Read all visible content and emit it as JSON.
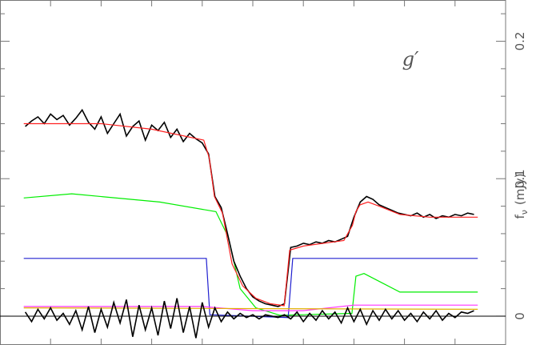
{
  "chart_data": {
    "type": "line",
    "annotation": "g′",
    "y_label": "f",
    "y_label_sub": "ν",
    "y_label_unit": "(mJy)",
    "xlim": [
      0,
      1
    ],
    "xticks": [
      0.1,
      0.2,
      0.3,
      0.4,
      0.5,
      0.6,
      0.7,
      0.8,
      0.9
    ],
    "ylim": [
      -0.021,
      0.23
    ],
    "yticks": [
      0,
      0.1,
      0.2
    ],
    "yminorticks": [
      0.02,
      0.04,
      0.06,
      0.08,
      0.12,
      0.14,
      0.16,
      0.18,
      0.22
    ],
    "series": [
      {
        "color": "#00ee00",
        "x": [
          0.047,
          0.142,
          0.316,
          0.427,
          0.451,
          0.475,
          0.506,
          0.554,
          0.696,
          0.704,
          0.72,
          0.791,
          0.945
        ],
        "values": [
          0.086,
          0.089,
          0.083,
          0.076,
          0.058,
          0.02,
          0.006,
          0.0006,
          0.002,
          0.029,
          0.031,
          0.0175,
          0.0175
        ]
      },
      {
        "color": "#2020d0",
        "x": [
          0.047,
          0.408,
          0.415,
          0.57,
          0.579,
          0.945
        ],
        "values": [
          0.042,
          0.042,
          0.001,
          -0.001,
          0.042,
          0.042
        ]
      },
      {
        "color": "#ff33ff",
        "x": [
          0.047,
          0.4,
          0.5,
          0.6,
          0.7,
          0.945
        ],
        "values": [
          0.007,
          0.007,
          0.004,
          0.004,
          0.008,
          0.008
        ]
      },
      {
        "color": "#e0b000",
        "x": [
          0.047,
          0.945
        ],
        "values": [
          0.006,
          0.005
        ]
      },
      {
        "color": "#000000",
        "x": [
          0.05,
          0.0625,
          0.075,
          0.0875,
          0.1,
          0.1125,
          0.125,
          0.1375,
          0.15,
          0.1625,
          0.175,
          0.1875,
          0.2,
          0.2125,
          0.225,
          0.2375,
          0.25,
          0.2625,
          0.275,
          0.2875,
          0.3,
          0.3125,
          0.325,
          0.3375,
          0.35,
          0.3625,
          0.375,
          0.3875,
          0.4,
          0.4125,
          0.425,
          0.4375,
          0.45,
          0.4625,
          0.475,
          0.4875,
          0.5,
          0.5125,
          0.525,
          0.5375,
          0.55,
          0.5625,
          0.575,
          0.5875,
          0.6,
          0.6125,
          0.625,
          0.6375,
          0.65,
          0.6625,
          0.675,
          0.6875,
          0.7,
          0.7125,
          0.725,
          0.7375,
          0.75,
          0.7625,
          0.775,
          0.7875,
          0.8,
          0.8125,
          0.825,
          0.8375,
          0.85,
          0.8625,
          0.875,
          0.8875,
          0.9,
          0.9125,
          0.925,
          0.9375
        ],
        "values": [
          0.138,
          0.142,
          0.145,
          0.14,
          0.147,
          0.143,
          0.146,
          0.139,
          0.144,
          0.15,
          0.141,
          0.136,
          0.145,
          0.133,
          0.14,
          0.147,
          0.131,
          0.138,
          0.142,
          0.128,
          0.139,
          0.135,
          0.141,
          0.13,
          0.136,
          0.127,
          0.133,
          0.129,
          0.126,
          0.118,
          0.087,
          0.079,
          0.06,
          0.04,
          0.029,
          0.02,
          0.014,
          0.011,
          0.009,
          0.008,
          0.007,
          0.009,
          0.05,
          0.051,
          0.053,
          0.052,
          0.054,
          0.053,
          0.055,
          0.054,
          0.056,
          0.058,
          0.072,
          0.083,
          0.087,
          0.085,
          0.081,
          0.079,
          0.077,
          0.075,
          0.074,
          0.073,
          0.075,
          0.072,
          0.074,
          0.071,
          0.073,
          0.072,
          0.074,
          0.073,
          0.075,
          0.074
        ]
      },
      {
        "color": "#000000",
        "x": [
          0.05,
          0.0625,
          0.075,
          0.0875,
          0.1,
          0.1125,
          0.125,
          0.1375,
          0.15,
          0.1625,
          0.175,
          0.1875,
          0.2,
          0.2125,
          0.225,
          0.2375,
          0.25,
          0.2625,
          0.275,
          0.2875,
          0.3,
          0.3125,
          0.325,
          0.3375,
          0.35,
          0.3625,
          0.375,
          0.3875,
          0.4,
          0.4125,
          0.425,
          0.4375,
          0.45,
          0.4625,
          0.475,
          0.4875,
          0.5,
          0.5125,
          0.525,
          0.5375,
          0.55,
          0.5625,
          0.575,
          0.5875,
          0.6,
          0.6125,
          0.625,
          0.6375,
          0.65,
          0.6625,
          0.675,
          0.6875,
          0.7,
          0.7125,
          0.725,
          0.7375,
          0.75,
          0.7625,
          0.775,
          0.7875,
          0.8,
          0.8125,
          0.825,
          0.8375,
          0.85,
          0.8625,
          0.875,
          0.8875,
          0.9,
          0.9125,
          0.925,
          0.9375
        ],
        "values": [
          0.003,
          -0.004,
          0.005,
          -0.002,
          0.006,
          -0.003,
          0.002,
          -0.006,
          0.004,
          -0.01,
          0.007,
          -0.012,
          0.005,
          -0.008,
          0.01,
          -0.005,
          0.012,
          -0.015,
          0.008,
          -0.01,
          0.006,
          -0.014,
          0.011,
          -0.009,
          0.013,
          -0.012,
          0.007,
          -0.016,
          0.01,
          -0.008,
          0.006,
          -0.004,
          0.003,
          -0.002,
          0.002,
          -0.001,
          0.001,
          -0.002,
          0.001,
          0,
          -0.001,
          0.001,
          -0.002,
          0.003,
          -0.004,
          0.002,
          -0.003,
          0.004,
          -0.002,
          0.003,
          -0.005,
          0.006,
          -0.004,
          0.005,
          -0.006,
          0.004,
          -0.003,
          0.005,
          -0.002,
          0.004,
          -0.003,
          0.002,
          -0.004,
          0.003,
          -0.002,
          0.004,
          -0.003,
          0.002,
          -0.001,
          0.003,
          0.002,
          0.004
        ]
      },
      {
        "color": "#ff2020",
        "x": [
          0.047,
          0.2,
          0.3,
          0.403,
          0.414,
          0.424,
          0.44,
          0.459,
          0.48,
          0.506,
          0.535,
          0.562,
          0.573,
          0.6,
          0.68,
          0.697,
          0.704,
          0.712,
          0.728,
          0.75,
          0.791,
          0.85,
          0.945
        ],
        "values": [
          0.14,
          0.14,
          0.136,
          0.128,
          0.115,
          0.087,
          0.075,
          0.038,
          0.022,
          0.013,
          0.009,
          0.0076,
          0.048,
          0.051,
          0.055,
          0.066,
          0.076,
          0.081,
          0.083,
          0.08,
          0.074,
          0.072,
          0.072
        ]
      }
    ]
  }
}
